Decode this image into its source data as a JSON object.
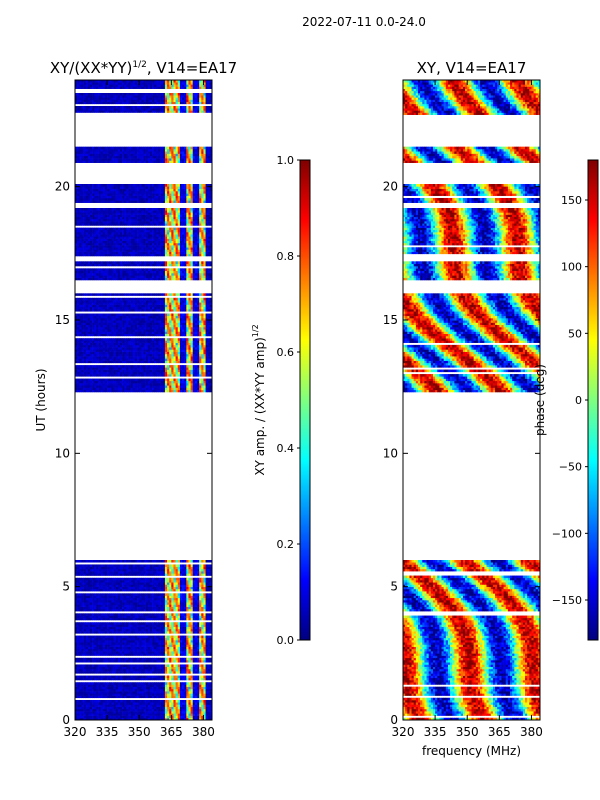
{
  "suptitle": "2022-07-11 0.0-24.0",
  "colors": {
    "jet": [
      "#00007f",
      "#0000ff",
      "#007fff",
      "#00ffff",
      "#7fff7f",
      "#ffff00",
      "#ff7f00",
      "#ff0000",
      "#7f0000"
    ]
  },
  "chart_data": [
    {
      "type": "heatmap",
      "title_main": "XY/(XX*YY)",
      "title_sup": "1/2",
      "title_tail": ", V14=EA17",
      "xlabel": "",
      "ylabel": "UT (hours)",
      "xlim": [
        320,
        384
      ],
      "ylim": [
        0,
        24
      ],
      "xticks": [
        320,
        335,
        350,
        365,
        380
      ],
      "yticks": [
        0,
        5,
        10,
        15,
        20
      ],
      "data_bands_hours": [
        [
          0,
          6
        ],
        [
          12.3,
          16
        ],
        [
          16.5,
          17.2
        ],
        [
          17.4,
          19.2
        ],
        [
          19.4,
          20.1
        ],
        [
          20.9,
          21.5
        ],
        [
          22.7,
          24
        ]
      ],
      "bright_band_mhz": [
        362,
        381
      ],
      "colorbar": {
        "label_main": "XY amp. / (XX*YY amp)",
        "label_sup": "1/2",
        "range": [
          0,
          1
        ],
        "ticks": [
          "0.0",
          "0.2",
          "0.4",
          "0.6",
          "0.8",
          "1.0"
        ]
      }
    },
    {
      "type": "heatmap",
      "title": "XY, V14=EA17",
      "xlabel": "frequency (MHz)",
      "ylabel": "",
      "xlim": [
        320,
        384
      ],
      "ylim": [
        0,
        24
      ],
      "xticks": [
        320,
        335,
        350,
        365,
        380
      ],
      "yticks": [
        0,
        5,
        10,
        15,
        20
      ],
      "data_bands_hours": [
        [
          0,
          6
        ],
        [
          12.3,
          16
        ],
        [
          16.5,
          17.2
        ],
        [
          17.4,
          19.2
        ],
        [
          19.4,
          20.1
        ],
        [
          20.9,
          21.5
        ],
        [
          22.7,
          24
        ]
      ],
      "colorbar": {
        "label": "phase (deg)",
        "range": [
          -180,
          180
        ],
        "ticks": [
          "−150",
          "−100",
          "−50",
          "0",
          "50",
          "100",
          "150"
        ]
      }
    }
  ]
}
